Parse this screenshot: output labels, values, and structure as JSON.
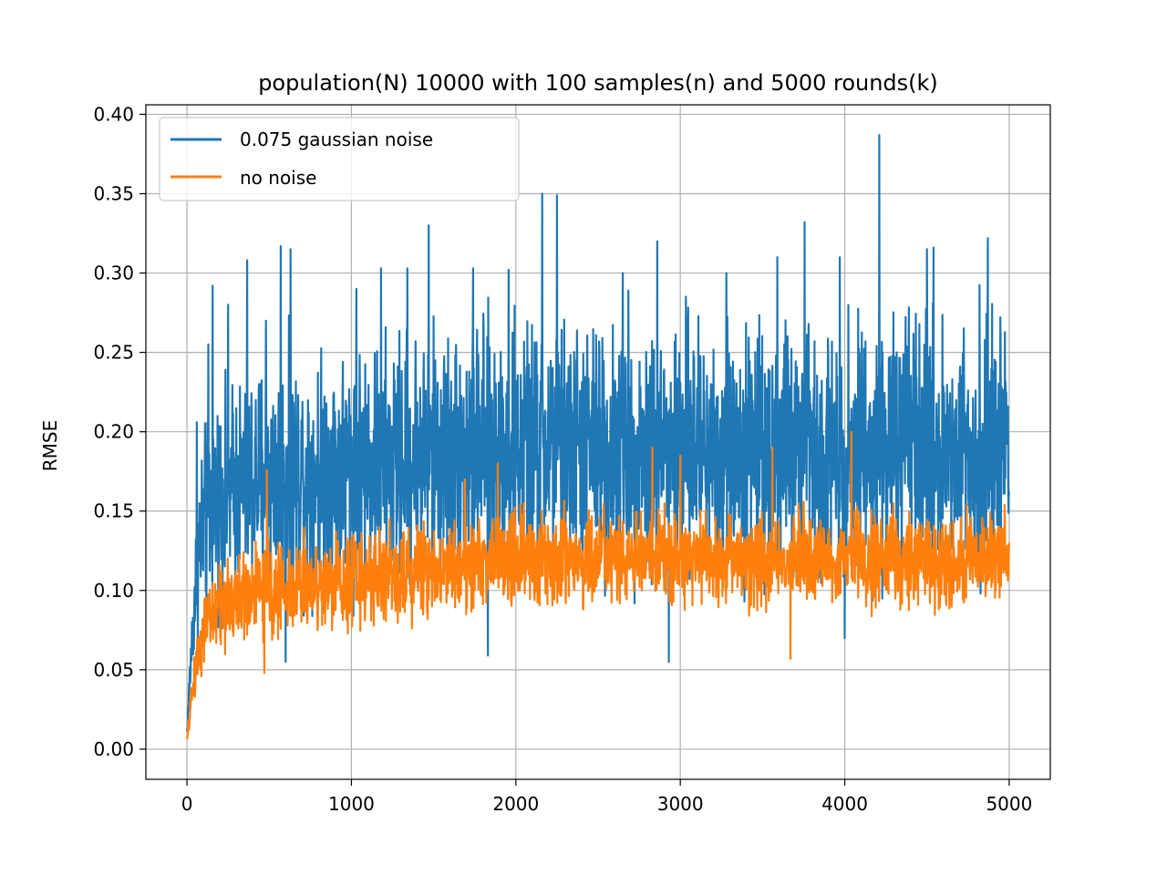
{
  "chart_data": {
    "type": "line",
    "title": "population(N) 10000 with 100 samples(n) and 5000 rounds(k)",
    "xlabel": "",
    "ylabel": "RMSE",
    "xlim": [
      -250,
      5250
    ],
    "ylim": [
      -0.019,
      0.406
    ],
    "x_ticks": [
      0,
      1000,
      2000,
      3000,
      4000,
      5000
    ],
    "x_tick_labels": [
      "0",
      "1000",
      "2000",
      "3000",
      "4000",
      "5000"
    ],
    "y_ticks": [
      0.0,
      0.05,
      0.1,
      0.15,
      0.2,
      0.25,
      0.3,
      0.35,
      0.4
    ],
    "y_tick_labels": [
      "0.00",
      "0.05",
      "0.10",
      "0.15",
      "0.20",
      "0.25",
      "0.30",
      "0.35",
      "0.40"
    ],
    "grid": true,
    "legend_position": "upper-left",
    "series": [
      {
        "name": "0.075 gaussian noise",
        "color": "#1f77b4",
        "x": [
          0,
          25,
          50,
          75,
          100,
          150,
          200,
          300,
          400,
          500,
          700,
          1000,
          1500,
          2000,
          2500,
          3000,
          3500,
          4000,
          4500,
          5000
        ],
        "trend": [
          0.01,
          0.06,
          0.1,
          0.13,
          0.14,
          0.15,
          0.16,
          0.165,
          0.17,
          0.172,
          0.175,
          0.178,
          0.185,
          0.19,
          0.19,
          0.19,
          0.19,
          0.19,
          0.19,
          0.19
        ],
        "band": [
          0.01,
          0.03,
          0.06,
          0.08,
          0.09,
          0.095,
          0.1,
          0.105,
          0.11,
          0.11,
          0.11,
          0.115,
          0.12,
          0.12,
          0.12,
          0.12,
          0.12,
          0.12,
          0.12,
          0.12
        ],
        "peaks": [
          {
            "x": 60,
            "y": 0.206
          },
          {
            "x": 130,
            "y": 0.255
          },
          {
            "x": 155,
            "y": 0.292
          },
          {
            "x": 250,
            "y": 0.28
          },
          {
            "x": 365,
            "y": 0.308
          },
          {
            "x": 480,
            "y": 0.27
          },
          {
            "x": 570,
            "y": 0.317
          },
          {
            "x": 630,
            "y": 0.315
          },
          {
            "x": 1030,
            "y": 0.29
          },
          {
            "x": 1180,
            "y": 0.303
          },
          {
            "x": 1340,
            "y": 0.303
          },
          {
            "x": 1470,
            "y": 0.33
          },
          {
            "x": 1740,
            "y": 0.303
          },
          {
            "x": 1955,
            "y": 0.302
          },
          {
            "x": 2160,
            "y": 0.35
          },
          {
            "x": 2250,
            "y": 0.349
          },
          {
            "x": 2650,
            "y": 0.3
          },
          {
            "x": 2860,
            "y": 0.32
          },
          {
            "x": 3280,
            "y": 0.3
          },
          {
            "x": 3590,
            "y": 0.31
          },
          {
            "x": 3755,
            "y": 0.332
          },
          {
            "x": 3970,
            "y": 0.31
          },
          {
            "x": 4210,
            "y": 0.387
          },
          {
            "x": 4500,
            "y": 0.315
          },
          {
            "x": 4540,
            "y": 0.316
          },
          {
            "x": 4870,
            "y": 0.322
          }
        ],
        "troughs": [
          {
            "x": 600,
            "y": 0.055
          },
          {
            "x": 1830,
            "y": 0.059
          },
          {
            "x": 2930,
            "y": 0.055
          },
          {
            "x": 4000,
            "y": 0.07
          }
        ]
      },
      {
        "name": "no noise",
        "color": "#ff7f0e",
        "x": [
          0,
          25,
          50,
          75,
          100,
          150,
          200,
          300,
          400,
          500,
          700,
          1000,
          1500,
          2000,
          2500,
          3000,
          3500,
          4000,
          4500,
          5000
        ],
        "trend": [
          0.005,
          0.03,
          0.05,
          0.065,
          0.075,
          0.085,
          0.09,
          0.095,
          0.1,
          0.1,
          0.103,
          0.107,
          0.115,
          0.12,
          0.12,
          0.12,
          0.12,
          0.12,
          0.12,
          0.12
        ],
        "band": [
          0.005,
          0.015,
          0.025,
          0.03,
          0.035,
          0.04,
          0.045,
          0.045,
          0.045,
          0.045,
          0.045,
          0.045,
          0.045,
          0.045,
          0.045,
          0.045,
          0.045,
          0.045,
          0.045,
          0.045
        ],
        "peaks": [
          {
            "x": 485,
            "y": 0.176
          },
          {
            "x": 1690,
            "y": 0.17
          },
          {
            "x": 1890,
            "y": 0.18
          },
          {
            "x": 2830,
            "y": 0.19
          },
          {
            "x": 3000,
            "y": 0.185
          },
          {
            "x": 3560,
            "y": 0.19
          },
          {
            "x": 4040,
            "y": 0.2
          }
        ],
        "troughs": [
          {
            "x": 470,
            "y": 0.048
          },
          {
            "x": 3670,
            "y": 0.057
          }
        ]
      }
    ]
  }
}
